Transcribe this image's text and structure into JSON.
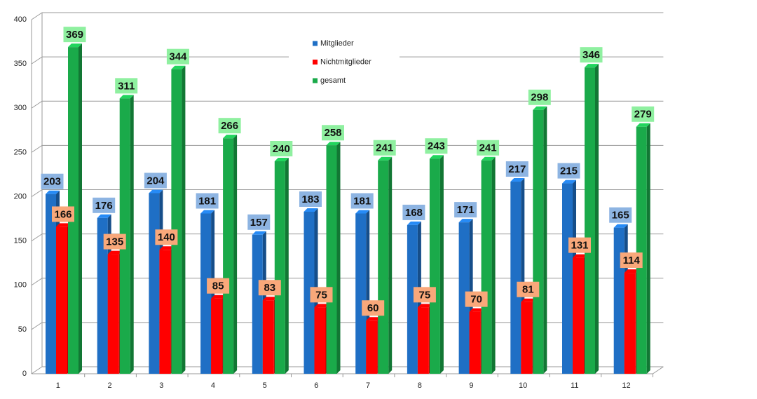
{
  "chart_data": {
    "type": "bar3d",
    "categories": [
      "1",
      "2",
      "3",
      "4",
      "5",
      "6",
      "7",
      "8",
      "9",
      "10",
      "11",
      "12"
    ],
    "series": [
      {
        "name": "Mitglieder",
        "color": "#1f6fc5",
        "label_color": "#8db4e2",
        "values": [
          203,
          176,
          204,
          181,
          157,
          183,
          181,
          168,
          171,
          217,
          215,
          165
        ]
      },
      {
        "name": "Nichtmitglieder",
        "color": "#ff0000",
        "label_color": "#f9a87a",
        "values": [
          166,
          135,
          140,
          85,
          83,
          75,
          60,
          75,
          70,
          81,
          131,
          114
        ]
      },
      {
        "name": "gesamt",
        "color": "#1aaa4a",
        "label_color": "#8ff0a0",
        "values": [
          369,
          311,
          344,
          266,
          240,
          258,
          241,
          243,
          241,
          298,
          346,
          279
        ]
      }
    ],
    "ylim": [
      0,
      400
    ],
    "yticks": [
      0,
      50,
      100,
      150,
      200,
      250,
      300,
      350,
      400
    ],
    "grid": true,
    "legend_position": "top-center"
  }
}
